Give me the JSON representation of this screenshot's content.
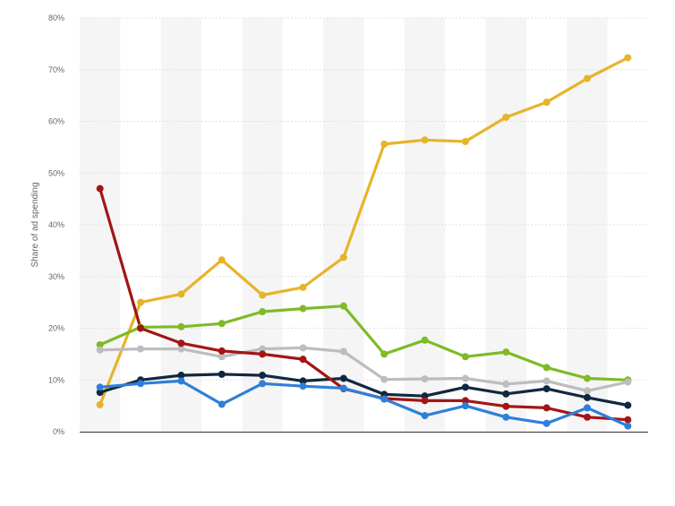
{
  "chart_data": {
    "type": "line",
    "ylabel": "Share of ad spending",
    "yticks": [
      "0%",
      "10%",
      "20%",
      "30%",
      "40%",
      "50%",
      "60%",
      "70%",
      "80%"
    ],
    "ylim": [
      0,
      80
    ],
    "x_count": 14,
    "grid": true,
    "x_tick_labels_visible": false,
    "series": [
      {
        "color": "#e6b42a",
        "values": [
          5.2,
          25.0,
          26.6,
          33.2,
          26.4,
          27.9,
          33.7,
          55.6,
          56.4,
          56.1,
          60.8,
          63.7,
          68.3,
          72.3
        ]
      },
      {
        "color": "#7fba27",
        "values": [
          16.8,
          20.2,
          20.3,
          20.9,
          23.2,
          23.8,
          24.3,
          15.0,
          17.7,
          14.5,
          15.4,
          12.4,
          10.3,
          10.0
        ]
      },
      {
        "color": "#bdbdbd",
        "values": [
          15.8,
          16.0,
          16.0,
          14.5,
          16.0,
          16.2,
          15.5,
          10.1,
          10.2,
          10.3,
          9.2,
          9.8,
          7.9,
          9.6
        ]
      },
      {
        "color": "#0f2841",
        "values": [
          7.6,
          10.0,
          10.9,
          11.1,
          10.9,
          9.8,
          10.3,
          7.2,
          6.9,
          8.6,
          7.3,
          8.3,
          6.6,
          5.1
        ]
      },
      {
        "color": "#a31515",
        "values": [
          47.0,
          20.0,
          17.1,
          15.6,
          15.0,
          14.0,
          8.3,
          6.4,
          6.0,
          6.0,
          4.9,
          4.6,
          2.8,
          2.3
        ]
      },
      {
        "color": "#2f7fd8",
        "values": [
          8.6,
          9.3,
          9.8,
          5.3,
          9.3,
          8.8,
          8.4,
          6.3,
          3.1,
          5.0,
          2.8,
          1.6,
          4.6,
          1.1
        ]
      }
    ]
  }
}
